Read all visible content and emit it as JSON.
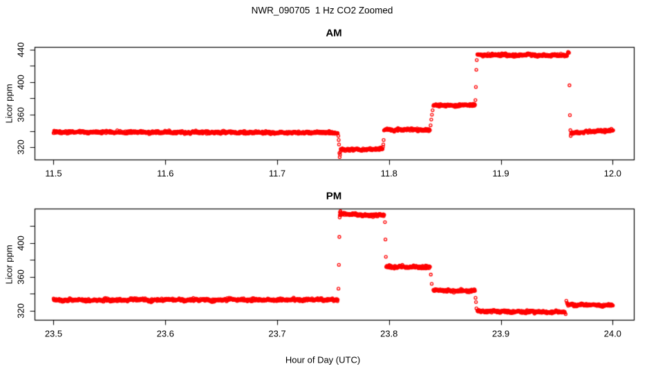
{
  "title": "NWR_090705  1 Hz CO2 Zoomed",
  "xlabel": "Hour of Day (UTC)",
  "point_color": "#FF0000",
  "axis_color": "#000000",
  "chart_data": [
    {
      "type": "scatter",
      "title": "AM",
      "ylabel": "Licor ppm",
      "marker": "open-circle",
      "sample_rate_hz": 1,
      "grid": false,
      "xlim": [
        11.483,
        12.019
      ],
      "ylim": [
        305,
        443
      ],
      "x_ticks": [
        11.5,
        11.6,
        11.7,
        11.8,
        11.9,
        12.0
      ],
      "y_ticks": [
        320,
        340,
        360,
        380,
        400,
        420,
        440
      ],
      "y_tick_labels": [
        320,
        360,
        400,
        440
      ],
      "segments": [
        {
          "t_start": 11.5,
          "t_end": 11.7544,
          "ppm": 338.3,
          "drift": [
            0.4,
            -0.4
          ],
          "noise_sd": 1.1
        },
        {
          "t_start": 11.7568,
          "t_end": 11.7943,
          "ppm": 317.5,
          "drift": [
            -0.5,
            0.3
          ],
          "noise_sd": 1.1
        },
        {
          "t_start": 11.7955,
          "t_end": 11.8367,
          "ppm": 341.5,
          "drift": [
            0.0,
            0.0
          ],
          "noise_sd": 1.1
        },
        {
          "t_start": 11.8397,
          "t_end": 11.877,
          "ppm": 371.5,
          "drift": [
            -0.3,
            0.3
          ],
          "noise_sd": 1.1
        },
        {
          "t_start": 11.879,
          "t_end": 11.9595,
          "ppm": 433.0,
          "drift": [
            0.3,
            -0.3
          ],
          "noise_sd": 1.1
        },
        {
          "t_start": 11.963,
          "t_end": 12.0005,
          "ppm": 339.5,
          "drift": [
            -1.8,
            1.5
          ],
          "noise_sd": 1.0
        }
      ],
      "transition_points": [
        [
          11.7547,
          334.0
        ],
        [
          11.755,
          329.0
        ],
        [
          11.7553,
          323.5
        ],
        [
          11.7556,
          313.0
        ],
        [
          11.7559,
          308.0
        ],
        [
          11.7562,
          311.0
        ],
        [
          11.7565,
          314.5
        ],
        [
          11.7946,
          320.5
        ],
        [
          11.7949,
          323.5
        ],
        [
          11.7952,
          329.0
        ],
        [
          11.8372,
          347.0
        ],
        [
          11.8378,
          354.0
        ],
        [
          11.8384,
          360.0
        ],
        [
          11.839,
          365.5
        ],
        [
          11.8773,
          378.0
        ],
        [
          11.8777,
          394.0
        ],
        [
          11.8781,
          415.0
        ],
        [
          11.8785,
          427.0
        ],
        [
          11.9598,
          435.5
        ],
        [
          11.9602,
          437.0
        ],
        [
          11.9606,
          436.5
        ],
        [
          11.961,
          435.8
        ],
        [
          11.9614,
          396.0
        ],
        [
          11.9618,
          359.5
        ],
        [
          11.9622,
          341.0
        ],
        [
          11.9625,
          334.0
        ],
        [
          11.9628,
          336.5
        ]
      ]
    },
    {
      "type": "scatter",
      "title": "PM",
      "ylabel": "Licor ppm",
      "marker": "open-circle",
      "sample_rate_hz": 1,
      "grid": false,
      "xlim": [
        23.483,
        24.019
      ],
      "ylim": [
        309,
        440.5
      ],
      "x_ticks": [
        23.5,
        23.6,
        23.7,
        23.8,
        23.9,
        24.0
      ],
      "y_ticks": [
        320,
        340,
        360,
        380,
        400,
        420
      ],
      "y_tick_labels": [
        320,
        360,
        400
      ],
      "segments": [
        {
          "t_start": 23.5,
          "t_end": 23.7544,
          "ppm": 331.8,
          "drift": [
            0.6,
            0.9
          ],
          "noise_sd": 1.1
        },
        {
          "t_start": 23.756,
          "t_end": 23.796,
          "ppm": 433.0,
          "drift": [
            1.0,
            -0.5
          ],
          "noise_sd": 1.1
        },
        {
          "t_start": 23.7975,
          "t_end": 23.8367,
          "ppm": 371.5,
          "drift": [
            0.3,
            -0.3
          ],
          "noise_sd": 1.1
        },
        {
          "t_start": 23.8397,
          "t_end": 23.877,
          "ppm": 343.5,
          "drift": [
            0.3,
            -0.5
          ],
          "noise_sd": 1.1
        },
        {
          "t_start": 23.879,
          "t_end": 23.9575,
          "ppm": 318.5,
          "drift": [
            0.8,
            -0.5
          ],
          "noise_sd": 1.1
        },
        {
          "t_start": 23.96,
          "t_end": 24.0005,
          "ppm": 326.5,
          "drift": [
            0.3,
            -0.3
          ],
          "noise_sd": 1.0
        }
      ],
      "transition_points": [
        [
          23.7548,
          345.8
        ],
        [
          23.7552,
          374.0
        ],
        [
          23.7556,
          407.0
        ],
        [
          23.7559,
          430.0
        ],
        [
          23.7562,
          436.5
        ],
        [
          23.7566,
          437.5
        ],
        [
          23.7964,
          424.5
        ],
        [
          23.7968,
          404.0
        ],
        [
          23.7972,
          383.5
        ],
        [
          23.8374,
          362.5
        ],
        [
          23.8382,
          351.5
        ],
        [
          23.8774,
          335.0
        ],
        [
          23.8778,
          330.0
        ],
        [
          23.8782,
          322.5
        ],
        [
          23.958,
          315.8
        ],
        [
          23.9586,
          331.5
        ],
        [
          23.9592,
          329.0
        ],
        [
          23.9596,
          327.5
        ]
      ]
    }
  ]
}
